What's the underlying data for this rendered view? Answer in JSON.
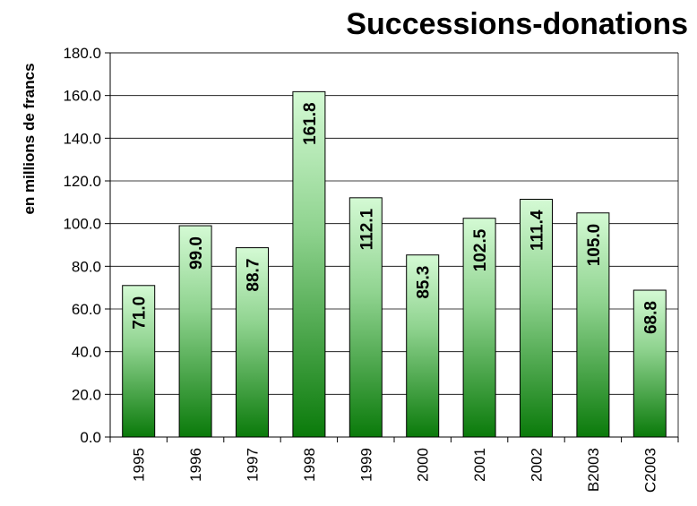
{
  "chart_data": {
    "type": "bar",
    "title": "Successions-donations",
    "ylabel": "en millions de francs",
    "xlabel": "",
    "categories": [
      "1995",
      "1996",
      "1997",
      "1998",
      "1999",
      "2000",
      "2001",
      "2002",
      "B2003",
      "C2003"
    ],
    "values": [
      71.0,
      99.0,
      88.7,
      161.8,
      112.1,
      85.3,
      102.5,
      111.4,
      105.0,
      68.8
    ],
    "value_labels": [
      "71.0",
      "99.0",
      "88.7",
      "161.8",
      "112.1",
      "85.3",
      "102.5",
      "111.4",
      "105.0",
      "68.8"
    ],
    "ylim": [
      0,
      180
    ],
    "yticks": [
      "0.0",
      "20.0",
      "40.0",
      "60.0",
      "80.0",
      "100.0",
      "120.0",
      "140.0",
      "160.0",
      "180.0"
    ],
    "ytick_values": [
      0,
      20,
      40,
      60,
      80,
      100,
      120,
      140,
      160,
      180
    ],
    "grid": true,
    "legend": "none",
    "colors": {
      "bar_top": "#d4fad4",
      "bar_bottom": "#0a7a0a",
      "grid": "#000000"
    }
  }
}
